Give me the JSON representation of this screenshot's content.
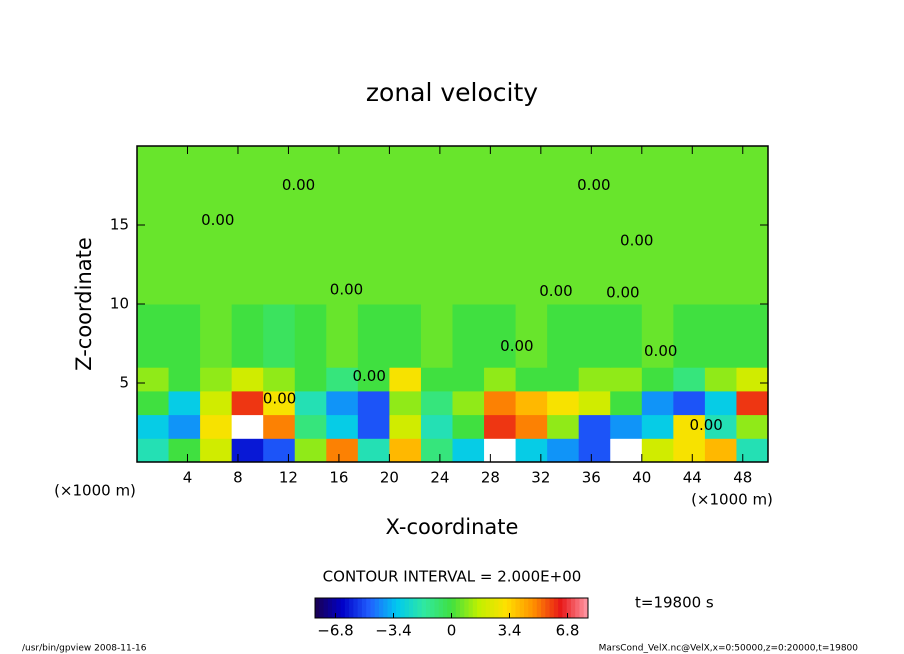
{
  "chart_data": {
    "type": "heatmap",
    "title": "zonal velocity",
    "x_label": "X-coordinate",
    "y_label": "Z-coordinate",
    "x_unit_left": "(×1000 m)",
    "x_unit_right": "(×1000 m)",
    "contour_interval": "CONTOUR INTERVAL = 2.000E+00",
    "time_label": "t=19800 s",
    "footer_left": "/usr/bin/gpview  2008-11-16",
    "footer_right": "MarsCond_VelX.nc@VelX,x=0:50000,z=0:20000,t=19800",
    "xlim": [
      0,
      50
    ],
    "ylim": [
      0,
      20
    ],
    "xticks": [
      4,
      8,
      12,
      16,
      20,
      24,
      28,
      32,
      36,
      40,
      44,
      48
    ],
    "yticks": [
      5,
      10,
      15
    ],
    "x_bins": [
      0,
      2.5,
      5,
      7.5,
      10,
      12.5,
      15,
      17.5,
      20,
      22.5,
      25,
      27.5,
      30,
      32.5,
      35,
      37.5,
      40,
      42.5,
      45,
      47.5,
      50
    ],
    "y_bins": [
      0,
      1.5,
      3,
      4.5,
      6,
      10,
      20
    ],
    "values": [
      [
        -2,
        0,
        2,
        -6,
        -5,
        1,
        5,
        -2,
        4,
        -1,
        -3,
        9,
        -3,
        -4,
        -5,
        9,
        2,
        3,
        4,
        -2
      ],
      [
        -3,
        -4,
        3,
        9,
        5,
        -1,
        -3,
        -5,
        2,
        -2,
        0,
        6,
        5,
        1,
        -5,
        -4,
        -3,
        3,
        -2,
        1
      ],
      [
        0,
        -3,
        2,
        6,
        3,
        -2,
        -4,
        -5,
        1,
        -1,
        1,
        5,
        4,
        3,
        2,
        0,
        -4,
        -5,
        -3,
        6
      ],
      [
        1,
        0,
        1,
        2,
        1,
        0,
        -1,
        0,
        3,
        0,
        0,
        1,
        0,
        0,
        1,
        1,
        0,
        -1,
        1,
        2
      ],
      [
        0,
        0,
        0.5,
        0,
        -0.5,
        0,
        0.5,
        0,
        0,
        0.5,
        0,
        0,
        0.5,
        0,
        0,
        0,
        0.5,
        0,
        0,
        0
      ],
      [
        0.5,
        0.5,
        0.5,
        0.5,
        0.5,
        0.5,
        0.5,
        0.5,
        0.5,
        0.5,
        0.5,
        0.5,
        0.5,
        0.5,
        0.5,
        0.5,
        0.5,
        0.5,
        0.5,
        0.5
      ]
    ],
    "clim": [
      -8,
      8
    ],
    "colors": [
      "#1a0050",
      "#0000c8",
      "#2060ff",
      "#00c8f0",
      "#30e8a0",
      "#40e040",
      "#c0f000",
      "#ffe000",
      "#ff9000",
      "#e81818",
      "#ff9aa8"
    ],
    "over_color": "#ffffff",
    "colorbar_ticks": [
      {
        "value": -6.8,
        "label": "−6.8"
      },
      {
        "value": -3.4,
        "label": "−3.4"
      },
      0,
      3.4,
      6.8
    ],
    "contour_labels": [
      {
        "label": "0.00",
        "x": 12.8,
        "y": 17.5
      },
      {
        "label": "0.00",
        "x": 6.4,
        "y": 15.3
      },
      {
        "label": "0.00",
        "x": 36.2,
        "y": 17.5
      },
      {
        "label": "0.00",
        "x": 39.6,
        "y": 14.0
      },
      {
        "label": "0.00",
        "x": 16.6,
        "y": 10.9
      },
      {
        "label": "0.00",
        "x": 33.2,
        "y": 10.8
      },
      {
        "label": "0.00",
        "x": 38.5,
        "y": 10.7
      },
      {
        "label": "0.00",
        "x": 30.1,
        "y": 7.3
      },
      {
        "label": "0.00",
        "x": 41.5,
        "y": 7.0
      },
      {
        "label": "0.00",
        "x": 18.4,
        "y": 5.4
      },
      {
        "label": "0.00",
        "x": 45.1,
        "y": 2.3
      },
      {
        "label": "0.00",
        "x": 11.3,
        "y": 4.0
      }
    ]
  }
}
